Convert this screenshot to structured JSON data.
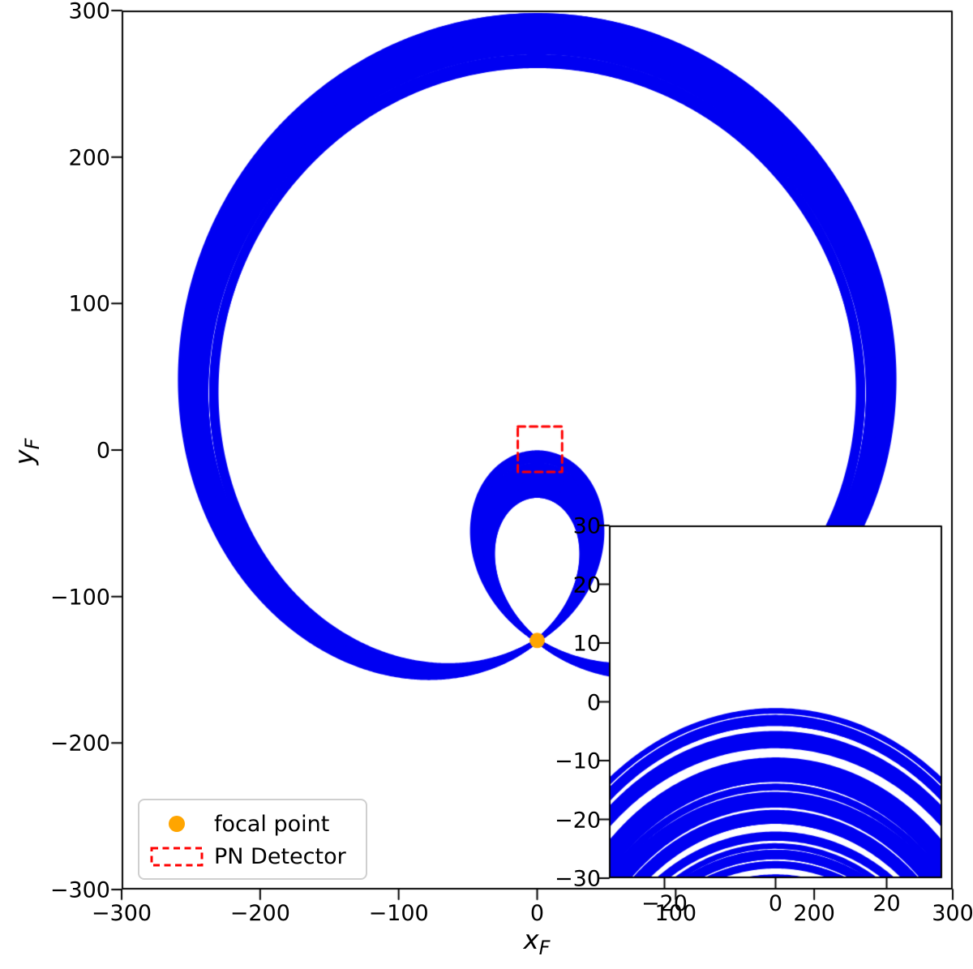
{
  "figure": {
    "legend": {
      "items": [
        {
          "label": "focal point",
          "marker": "orange-dot"
        },
        {
          "label": "PN Detector",
          "marker": "red-dashed-rect"
        }
      ]
    },
    "colors": {
      "trajectory": "#0000f2",
      "focal": "#ffa500",
      "detector": "#ff0000",
      "axis": "#000000",
      "legend_border": "#cfcfcf"
    }
  },
  "chart_data": {
    "type": "line",
    "title": "",
    "xlabel": {
      "base": "x",
      "sub": "F"
    },
    "ylabel": {
      "base": "y",
      "sub": "F"
    },
    "xlim": [
      -300,
      300
    ],
    "ylim": [
      -300,
      300
    ],
    "grid": false,
    "legend_position": "lower left",
    "xticks": [
      {
        "v": -300,
        "label": "−300"
      },
      {
        "v": -200,
        "label": "−200"
      },
      {
        "v": -100,
        "label": "−100"
      },
      {
        "v": 0,
        "label": "0"
      },
      {
        "v": 100,
        "label": "100"
      },
      {
        "v": 200,
        "label": "200"
      },
      {
        "v": 300,
        "label": "300"
      }
    ],
    "yticks": [
      {
        "v": -300,
        "label": "−300"
      },
      {
        "v": -200,
        "label": "−200"
      },
      {
        "v": -100,
        "label": "−100"
      },
      {
        "v": 0,
        "label": "0"
      },
      {
        "v": 100,
        "label": "100"
      },
      {
        "v": 200,
        "label": "200"
      },
      {
        "v": 300,
        "label": "300"
      }
    ],
    "focal_point": {
      "x": 0,
      "y": -130
    },
    "detector_rect": {
      "x0": -14,
      "x1": 18,
      "y0": -15,
      "y1": 16
    },
    "trajectories": {
      "model": "limacon family r(theta) = A + B*sin(theta) about the focal point; outer ring top ~ y=297, leftmost ~ x=-253, inner loop tops y = -3 .. -30",
      "count": 62,
      "A_plus_B_range": [
        392,
        427
      ],
      "B_minus_A_clusters": [
        100,
        103.4,
        106.8,
        110.1,
        113.5,
        116.9,
        120.3,
        123.6,
        127
      ],
      "cluster_jitter": 1.5,
      "seed": 11
    },
    "inset": {
      "xlim": [
        -30,
        30
      ],
      "ylim": [
        -30,
        30
      ],
      "xticks": [
        {
          "v": -20,
          "label": "−20"
        },
        {
          "v": 0,
          "label": "0"
        },
        {
          "v": 20,
          "label": "20"
        }
      ],
      "yticks": [
        {
          "v": -30,
          "label": "−30"
        },
        {
          "v": -20,
          "label": "−20"
        },
        {
          "v": -10,
          "label": "−10"
        },
        {
          "v": 0,
          "label": "0"
        },
        {
          "v": 10,
          "label": "10"
        },
        {
          "v": 20,
          "label": "20"
        },
        {
          "v": 30,
          "label": "30"
        }
      ]
    }
  }
}
